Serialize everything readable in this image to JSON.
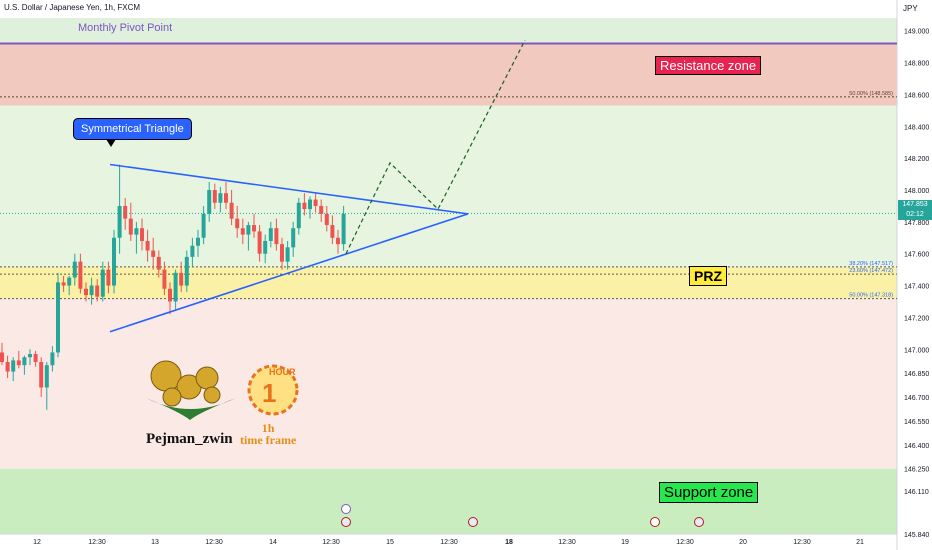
{
  "symbol_title": "U.S. Dollar / Japanese Yen, 1h, FXCM",
  "currency": "JPY",
  "pivot_label": "Monthly Pivot Point",
  "callout_label": "Symmetrical Triangle",
  "zones": {
    "resistance_label": "Resistance zone",
    "prz_label": "PRZ",
    "support_label": "Support zone"
  },
  "price_badge": {
    "price": "147.853",
    "countdown": "02:12"
  },
  "logo": {
    "name": "Pejman_zwin",
    "timeframe_line1": "1h",
    "timeframe_line2": "time frame",
    "hour_text": "HOUR"
  },
  "colors": {
    "resistance": "#e8234f",
    "prz": "#ffeb3b",
    "support": "#26e84c",
    "bullish": "#26a69a",
    "bearish": "#ef5350",
    "trendline": "#2962ff",
    "pivot": "#7e57c2"
  },
  "chart_data": {
    "type": "candlestick",
    "ylim": [
      145.84,
      149.08
    ],
    "price_ticks": [
      "149.000",
      "148.800",
      "148.600",
      "148.400",
      "148.200",
      "148.000",
      "147.800",
      "147.600",
      "147.400",
      "147.200",
      "147.000",
      "146.850",
      "146.700",
      "146.550",
      "146.400",
      "146.250",
      "146.110",
      "145.840"
    ],
    "date_ticks": [
      "12",
      "12:30",
      "13",
      "12:30",
      "14",
      "12:30",
      "15",
      "12:30",
      "18",
      "12:30",
      "19",
      "12:30",
      "20",
      "12:30",
      "21"
    ],
    "fib_labels": [
      "50.00% (148.585)",
      "38.20% (147.517)",
      "23.60% (147.472)",
      "50.00% (147.318)"
    ],
    "pivot_price": 148.92,
    "resistance_zone": [
      148.53,
      148.92
    ],
    "prz_zone": [
      147.318,
      147.517
    ],
    "support_zone": [
      145.84,
      146.25
    ],
    "triangle": {
      "upper": [
        [
          110,
          148.16
        ],
        [
          468,
          147.85
        ]
      ],
      "lower": [
        [
          110,
          147.11
        ],
        [
          468,
          147.85
        ]
      ]
    },
    "projection": [
      [
        346,
        147.6
      ],
      [
        390,
        148.17
      ],
      [
        438,
        147.88
      ],
      [
        525,
        148.94
      ]
    ],
    "current_price": 147.853,
    "candles": [
      [
        146.98,
        147.04,
        146.9,
        146.92
      ],
      [
        146.92,
        146.96,
        146.82,
        146.86
      ],
      [
        146.86,
        146.95,
        146.8,
        146.93
      ],
      [
        146.93,
        146.99,
        146.88,
        146.9
      ],
      [
        146.9,
        146.96,
        146.84,
        146.95
      ],
      [
        146.95,
        147.0,
        146.9,
        146.97
      ],
      [
        146.97,
        146.99,
        146.89,
        146.92
      ],
      [
        146.92,
        146.95,
        146.7,
        146.76
      ],
      [
        146.76,
        146.92,
        146.62,
        146.9
      ],
      [
        146.9,
        147.02,
        146.86,
        146.98
      ],
      [
        146.98,
        147.48,
        146.95,
        147.42
      ],
      [
        147.42,
        147.46,
        147.36,
        147.4
      ],
      [
        147.4,
        147.46,
        147.34,
        147.45
      ],
      [
        147.45,
        147.6,
        147.4,
        147.55
      ],
      [
        147.55,
        147.6,
        147.35,
        147.38
      ],
      [
        147.38,
        147.42,
        147.3,
        147.34
      ],
      [
        147.34,
        147.45,
        147.28,
        147.4
      ],
      [
        147.4,
        147.44,
        147.3,
        147.33
      ],
      [
        147.33,
        147.55,
        147.3,
        147.5
      ],
      [
        147.5,
        147.55,
        147.35,
        147.4
      ],
      [
        147.4,
        147.75,
        147.35,
        147.7
      ],
      [
        147.7,
        148.16,
        147.6,
        147.9
      ],
      [
        147.9,
        147.95,
        147.75,
        147.82
      ],
      [
        147.82,
        147.92,
        147.68,
        147.72
      ],
      [
        147.72,
        147.8,
        147.6,
        147.76
      ],
      [
        147.76,
        147.82,
        147.62,
        147.68
      ],
      [
        147.68,
        147.75,
        147.55,
        147.62
      ],
      [
        147.62,
        147.7,
        147.5,
        147.58
      ],
      [
        147.58,
        147.62,
        147.45,
        147.5
      ],
      [
        147.5,
        147.55,
        147.34,
        147.38
      ],
      [
        147.38,
        147.42,
        147.22,
        147.3
      ],
      [
        147.3,
        147.5,
        147.25,
        147.48
      ],
      [
        147.48,
        147.55,
        147.36,
        147.4
      ],
      [
        147.4,
        147.62,
        147.36,
        147.58
      ],
      [
        147.58,
        147.7,
        147.52,
        147.65
      ],
      [
        147.65,
        147.75,
        147.58,
        147.7
      ],
      [
        147.7,
        147.9,
        147.66,
        147.85
      ],
      [
        147.85,
        148.05,
        147.8,
        148.0
      ],
      [
        148.0,
        148.04,
        147.88,
        147.92
      ],
      [
        147.92,
        148.02,
        147.86,
        147.98
      ],
      [
        147.98,
        148.05,
        147.88,
        147.92
      ],
      [
        147.92,
        148.0,
        147.78,
        147.82
      ],
      [
        147.82,
        147.9,
        147.7,
        147.76
      ],
      [
        147.76,
        147.82,
        147.66,
        147.72
      ],
      [
        147.72,
        147.8,
        147.62,
        147.78
      ],
      [
        147.78,
        147.85,
        147.7,
        147.74
      ],
      [
        147.74,
        147.78,
        147.55,
        147.6
      ],
      [
        147.6,
        147.72,
        147.54,
        147.68
      ],
      [
        147.68,
        147.8,
        147.64,
        147.76
      ],
      [
        147.76,
        147.82,
        147.62,
        147.66
      ],
      [
        147.66,
        147.7,
        147.5,
        147.55
      ],
      [
        147.55,
        147.68,
        147.5,
        147.64
      ],
      [
        147.64,
        147.8,
        147.58,
        147.76
      ],
      [
        147.76,
        147.95,
        147.72,
        147.92
      ],
      [
        147.92,
        147.98,
        147.84,
        147.88
      ],
      [
        147.88,
        147.96,
        147.82,
        147.94
      ],
      [
        147.94,
        147.98,
        147.86,
        147.9
      ],
      [
        147.9,
        147.94,
        147.8,
        147.85
      ],
      [
        147.85,
        147.9,
        147.74,
        147.78
      ],
      [
        147.78,
        147.84,
        147.66,
        147.7
      ],
      [
        147.7,
        147.75,
        147.6,
        147.66
      ],
      [
        147.66,
        147.9,
        147.62,
        147.85
      ]
    ]
  }
}
